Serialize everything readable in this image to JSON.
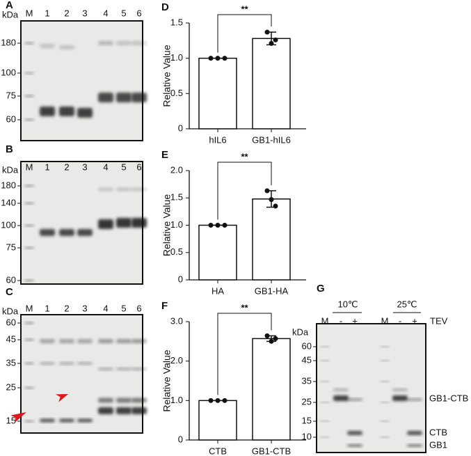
{
  "gels": [
    {
      "label": "A",
      "unit": "kDa",
      "lanes": [
        "M",
        "1",
        "2",
        "3",
        "4",
        "5",
        "6"
      ],
      "markers": [
        "180",
        "100",
        "75",
        "60"
      ]
    },
    {
      "label": "B",
      "unit": "kDa",
      "lanes": [
        "M",
        "1",
        "2",
        "3",
        "4",
        "5",
        "6"
      ],
      "markers": [
        "180",
        "140",
        "100",
        "75",
        "60"
      ]
    },
    {
      "label": "C",
      "unit": "kDa",
      "lanes": [
        "M",
        "1",
        "2",
        "3",
        "4",
        "5",
        "6"
      ],
      "markers": [
        "60",
        "45",
        "35",
        "25",
        "15"
      ]
    },
    {
      "label": "G",
      "unit": "kDa",
      "lanes": [
        "M",
        "-",
        "+",
        "M",
        "-",
        "+"
      ],
      "treatment": "TEV",
      "conditions": [
        "10℃",
        "25℃"
      ],
      "markers": [
        "60",
        "45",
        "35",
        "25",
        "15",
        "10"
      ],
      "band_labels": [
        "GB1-CTB",
        "CTB",
        "GB1"
      ]
    }
  ],
  "chart_data": [
    {
      "type": "bar",
      "label": "D",
      "y_label": "Relative Value",
      "categories": [
        "hIL6",
        "GB1-hIL6"
      ],
      "values": [
        1.0,
        1.28
      ],
      "errors": [
        0,
        0.09
      ],
      "points": [
        [
          1,
          1,
          1
        ],
        [
          1.37,
          1.21,
          1.26
        ]
      ],
      "significance": "**",
      "color": "#ffffff",
      "ylim": [
        0,
        1.5
      ],
      "yticks": [
        0,
        0.5,
        {
          "value": 1,
          "label": "1.0"
        },
        1.5
      ]
    },
    {
      "type": "bar",
      "label": "E",
      "y_label": "Relative Value",
      "categories": [
        "HA",
        "GB1-HA"
      ],
      "values": [
        1.0,
        1.48
      ],
      "errors": [
        0,
        0.15
      ],
      "points": [
        [
          1,
          1,
          1
        ],
        [
          1.63,
          1.47,
          1.35
        ]
      ],
      "significance": "**",
      "color": "#ffffff",
      "ylim": [
        0,
        2
      ],
      "yticks": [
        0,
        0.5,
        {
          "value": 1,
          "label": "1.0"
        },
        1.5,
        {
          "value": 2,
          "label": "2.0"
        }
      ]
    },
    {
      "type": "bar",
      "label": "F",
      "y_label": "Relative Value",
      "categories": [
        "CTB",
        "GB1-CTB"
      ],
      "values": [
        1.0,
        2.57
      ],
      "errors": [
        0,
        0.07
      ],
      "points": [
        [
          1,
          1,
          1
        ],
        [
          2.64,
          2.5,
          2.57
        ]
      ],
      "significance": "**",
      "color": "#ffffff",
      "ylim": [
        0,
        3
      ],
      "yticks": [
        0,
        {
          "value": 1,
          "label": "1.0"
        },
        {
          "value": 2,
          "label": "2.0"
        },
        {
          "value": 3,
          "label": "3.0"
        }
      ]
    }
  ]
}
